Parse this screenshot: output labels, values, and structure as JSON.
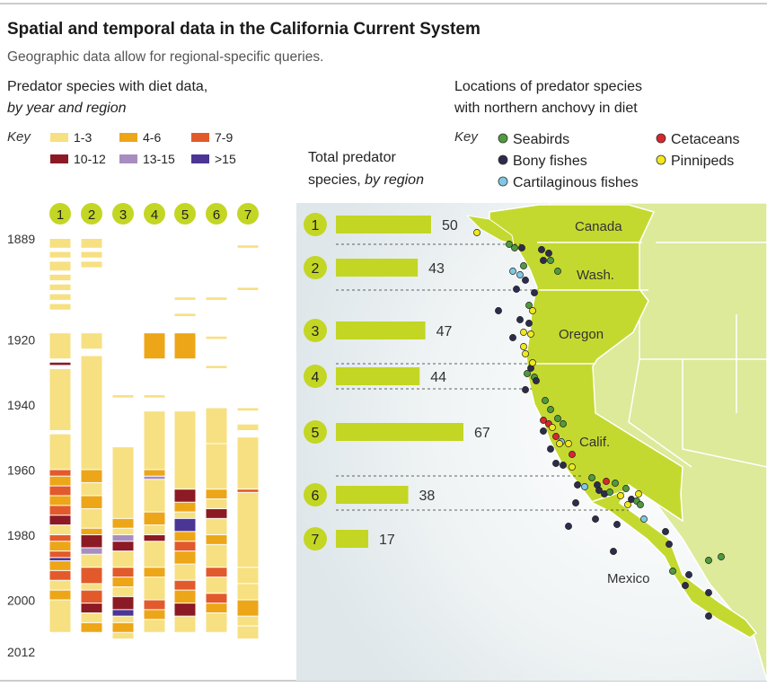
{
  "title": "Spatial and temporal data in the California Current System",
  "subtitle": "Geographic data allow for regional-specific queries.",
  "left_heading": {
    "line1": "Predator species with diet data,",
    "line2": "by year and region"
  },
  "right_heading": {
    "line1": "Locations of predator species",
    "line2": "with northern anchovy in diet"
  },
  "middle_heading": {
    "line1": "Total predator",
    "line2": "species, by region"
  },
  "key_label": "Key",
  "diet_legend": [
    {
      "label": "1-3",
      "color": "#f7e081"
    },
    {
      "label": "4-6",
      "color": "#eda618"
    },
    {
      "label": "7-9",
      "color": "#e25a2c"
    },
    {
      "label": "10-12",
      "color": "#8c1a24"
    },
    {
      "label": "13-15",
      "color": "#a88ec0"
    },
    {
      "label": ">15",
      "color": "#4b3595"
    }
  ],
  "location_legend": [
    {
      "label": "Seabirds",
      "color": "#4f9a3d"
    },
    {
      "label": "Cetaceans",
      "color": "#d8262e"
    },
    {
      "label": "Bony fishes",
      "color": "#2d2c4c"
    },
    {
      "label": "Pinnipeds",
      "color": "#f0e81c"
    },
    {
      "label": "Cartilaginous fishes",
      "color": "#7fc7e4"
    }
  ],
  "map_labels": [
    "Canada",
    "Wash.",
    "Oregon",
    "Calif.",
    "Mexico"
  ],
  "colors": {
    "region_bar": "#c3d624",
    "land": "#c4d92f",
    "land_light": "#dcea9a",
    "ocean": "#e6edf0",
    "region_circle": "#c3d624"
  },
  "chart_data": [
    {
      "type": "heatmap",
      "title": "Predator species with diet data, by year and region",
      "regions": [
        "1",
        "2",
        "3",
        "4",
        "5",
        "6",
        "7"
      ],
      "year_ticks": [
        1889,
        1920,
        1940,
        1960,
        1980,
        2000,
        2012
      ],
      "year_range": [
        1889,
        2012
      ],
      "categories": [
        "1-3",
        "4-6",
        "7-9",
        "10-12",
        "13-15",
        ">15"
      ],
      "segments": [
        [
          [
            1889,
            1892,
            "1-3"
          ],
          [
            1893,
            1895,
            "1-3"
          ],
          [
            1896,
            1899,
            "1-3"
          ],
          [
            1900,
            1902,
            "1-3"
          ],
          [
            1903,
            1905,
            "1-3"
          ],
          [
            1906,
            1908,
            "1-3"
          ],
          [
            1909,
            1911,
            "1-3"
          ],
          [
            1918,
            1926,
            "1-3"
          ],
          [
            1927,
            1928,
            "10-12"
          ],
          [
            1929,
            1948,
            "1-3"
          ],
          [
            1949,
            1960,
            "1-3"
          ],
          [
            1960,
            1962,
            "7-9"
          ],
          [
            1962,
            1965,
            "4-6"
          ],
          [
            1965,
            1968,
            "7-9"
          ],
          [
            1968,
            1971,
            "4-6"
          ],
          [
            1971,
            1974,
            "7-9"
          ],
          [
            1974,
            1977,
            "10-12"
          ],
          [
            1977,
            1980,
            "1-3"
          ],
          [
            1980,
            1982,
            "7-9"
          ],
          [
            1982,
            1985,
            "4-6"
          ],
          [
            1985,
            1987,
            "7-9"
          ],
          [
            1987,
            1988,
            ">15"
          ],
          [
            1988,
            1991,
            "4-6"
          ],
          [
            1991,
            1994,
            "7-9"
          ],
          [
            1994,
            1997,
            "1-3"
          ],
          [
            1997,
            2000,
            "4-6"
          ],
          [
            2000,
            2010,
            "1-3"
          ]
        ],
        [
          [
            1889,
            1892,
            "1-3"
          ],
          [
            1893,
            1895,
            "1-3"
          ],
          [
            1896,
            1898,
            "1-3"
          ],
          [
            1918,
            1923,
            "1-3"
          ],
          [
            1925,
            1960,
            "1-3"
          ],
          [
            1960,
            1964,
            "4-6"
          ],
          [
            1964,
            1968,
            "1-3"
          ],
          [
            1968,
            1972,
            "4-6"
          ],
          [
            1972,
            1978,
            "1-3"
          ],
          [
            1978,
            1980,
            "4-6"
          ],
          [
            1980,
            1984,
            "10-12"
          ],
          [
            1984,
            1986,
            "13-15"
          ],
          [
            1986,
            1990,
            "1-3"
          ],
          [
            1990,
            1995,
            "7-9"
          ],
          [
            1995,
            1997,
            "1-3"
          ],
          [
            1997,
            2001,
            "7-9"
          ],
          [
            2001,
            2004,
            "10-12"
          ],
          [
            2004,
            2007,
            "1-3"
          ],
          [
            2007,
            2010,
            "4-6"
          ]
        ],
        [
          [
            1937,
            1938,
            "1-3"
          ],
          [
            1953,
            1975,
            "1-3"
          ],
          [
            1975,
            1978,
            "4-6"
          ],
          [
            1978,
            1980,
            "1-3"
          ],
          [
            1980,
            1982,
            "13-15"
          ],
          [
            1982,
            1985,
            "10-12"
          ],
          [
            1985,
            1990,
            "1-3"
          ],
          [
            1990,
            1993,
            "7-9"
          ],
          [
            1993,
            1996,
            "4-6"
          ],
          [
            1996,
            1999,
            "1-3"
          ],
          [
            1999,
            2003,
            "10-12"
          ],
          [
            2003,
            2005,
            ">15"
          ],
          [
            2005,
            2007,
            "1-3"
          ],
          [
            2007,
            2010,
            "4-6"
          ],
          [
            2010,
            2012,
            "1-3"
          ]
        ],
        [
          [
            1918,
            1926,
            "4-6"
          ],
          [
            1937,
            1938,
            "1-3"
          ],
          [
            1942,
            1960,
            "1-3"
          ],
          [
            1960,
            1962,
            "4-6"
          ],
          [
            1962,
            1963,
            "13-15"
          ],
          [
            1963,
            1973,
            "1-3"
          ],
          [
            1973,
            1977,
            "4-6"
          ],
          [
            1977,
            1980,
            "1-3"
          ],
          [
            1980,
            1982,
            "10-12"
          ],
          [
            1982,
            1990,
            "1-3"
          ],
          [
            1990,
            1993,
            "4-6"
          ],
          [
            1993,
            2000,
            "1-3"
          ],
          [
            2000,
            2003,
            "7-9"
          ],
          [
            2003,
            2006,
            "4-6"
          ],
          [
            2006,
            2010,
            "1-3"
          ]
        ],
        [
          [
            1907,
            1908,
            "1-3"
          ],
          [
            1912,
            1913,
            "1-3"
          ],
          [
            1918,
            1926,
            "4-6"
          ],
          [
            1942,
            1966,
            "1-3"
          ],
          [
            1966,
            1970,
            "10-12"
          ],
          [
            1970,
            1973,
            "4-6"
          ],
          [
            1973,
            1975,
            "1-3"
          ],
          [
            1975,
            1979,
            ">15"
          ],
          [
            1979,
            1982,
            "4-6"
          ],
          [
            1982,
            1985,
            "7-9"
          ],
          [
            1985,
            1989,
            "4-6"
          ],
          [
            1989,
            1994,
            "1-3"
          ],
          [
            1994,
            1997,
            "7-9"
          ],
          [
            1997,
            2001,
            "4-6"
          ],
          [
            2001,
            2005,
            "10-12"
          ],
          [
            2005,
            2010,
            "1-3"
          ]
        ],
        [
          [
            1907,
            1908,
            "1-3"
          ],
          [
            1919,
            1920,
            "1-3"
          ],
          [
            1928,
            1929,
            "1-3"
          ],
          [
            1941,
            1952,
            "1-3"
          ],
          [
            1952,
            1966,
            "1-3"
          ],
          [
            1966,
            1969,
            "4-6"
          ],
          [
            1969,
            1972,
            "1-3"
          ],
          [
            1972,
            1975,
            "10-12"
          ],
          [
            1975,
            1980,
            "1-3"
          ],
          [
            1980,
            1983,
            "4-6"
          ],
          [
            1983,
            1990,
            "1-3"
          ],
          [
            1990,
            1993,
            "7-9"
          ],
          [
            1993,
            1998,
            "1-3"
          ],
          [
            1998,
            2001,
            "7-9"
          ],
          [
            2001,
            2004,
            "4-6"
          ],
          [
            2004,
            2010,
            "1-3"
          ]
        ],
        [
          [
            1891,
            1892,
            "1-3"
          ],
          [
            1904,
            1905,
            "1-3"
          ],
          [
            1941,
            1942,
            "1-3"
          ],
          [
            1946,
            1948,
            "1-3"
          ],
          [
            1950,
            1966,
            "1-3"
          ],
          [
            1966,
            1967,
            "7-9"
          ],
          [
            1967,
            1990,
            "1-3"
          ],
          [
            1990,
            1995,
            "1-3"
          ],
          [
            1995,
            2000,
            "1-3"
          ],
          [
            2000,
            2005,
            "4-6"
          ],
          [
            2005,
            2008,
            "1-3"
          ],
          [
            2008,
            2012,
            "1-3"
          ]
        ]
      ]
    },
    {
      "type": "bar",
      "title": "Total predator species, by region",
      "categories": [
        "1",
        "2",
        "3",
        "4",
        "5",
        "6",
        "7"
      ],
      "values": [
        50,
        43,
        47,
        44,
        67,
        38,
        17
      ]
    }
  ]
}
